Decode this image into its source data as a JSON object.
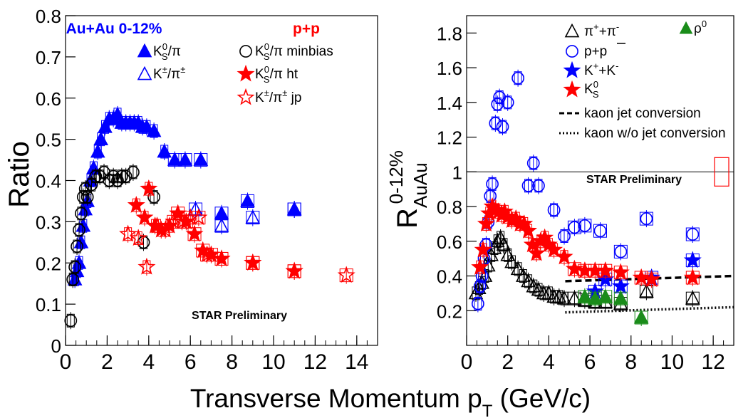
{
  "colors": {
    "blue": "#0000ff",
    "red": "#ff0000",
    "black": "#000000",
    "magenta": "#ff00ff",
    "green": "#1a8c1a"
  },
  "xlabel": "Transverse Momentum p",
  "xlabel_sub": "T",
  "xlabel_unit": " (GeV/c)",
  "chart_data": [
    {
      "type": "scatter",
      "ylabel": "Ratio",
      "xlim": [
        0,
        15
      ],
      "ylim": [
        0,
        0.8
      ],
      "x_ticks": [
        "0",
        "2",
        "4",
        "6",
        "8",
        "10",
        "12",
        "14"
      ],
      "y_ticks": [
        "0",
        "0.1",
        "0.2",
        "0.3",
        "0.4",
        "0.5",
        "0.6",
        "0.7",
        "0.8"
      ],
      "group_labels": {
        "auau": "Au+Au 0-12%",
        "pp": "p+p"
      },
      "annotation": "STAR Preliminary",
      "legend": {
        "ks_pi": "K",
        "ks_pi_sup": "0",
        "ks_pi_sub": "S",
        "ks_pi_tail": "/π",
        "kpm_pi": "K",
        "kpm_pi_sup": "±",
        "kpm_pi_mid": "/π",
        "kpm_pi_sup2": "±",
        "ks_pi_minbias_tail": "/π minbias",
        "ks_pi_ht_tail": "/π ht",
        "kpm_pi_jp_tail": " jp"
      },
      "series": [
        {
          "name": "AuAu K0S/π",
          "marker": "triangle-filled",
          "color": "blue",
          "points": [
            [
              0.45,
              0.16
            ],
            [
              0.55,
              0.18
            ],
            [
              0.65,
              0.2
            ],
            [
              0.75,
              0.25
            ],
            [
              0.85,
              0.29
            ],
            [
              0.95,
              0.33
            ],
            [
              1.05,
              0.35
            ],
            [
              1.2,
              0.4
            ],
            [
              1.35,
              0.43
            ],
            [
              1.55,
              0.47
            ],
            [
              1.7,
              0.5
            ],
            [
              1.9,
              0.53
            ],
            [
              2.1,
              0.55
            ],
            [
              2.3,
              0.55
            ],
            [
              2.5,
              0.56
            ],
            [
              2.7,
              0.54
            ],
            [
              2.9,
              0.54
            ],
            [
              3.1,
              0.54
            ],
            [
              3.3,
              0.54
            ],
            [
              3.5,
              0.54
            ],
            [
              3.7,
              0.53
            ],
            [
              3.9,
              0.53
            ],
            [
              4.25,
              0.52
            ],
            [
              4.75,
              0.47
            ],
            [
              5.25,
              0.45
            ],
            [
              5.75,
              0.45
            ],
            [
              6.5,
              0.45
            ],
            [
              7.5,
              0.32
            ],
            [
              8.75,
              0.35
            ],
            [
              11.0,
              0.33
            ]
          ]
        },
        {
          "name": "AuAu K±/π±",
          "marker": "triangle-open",
          "color": "blue",
          "points": [
            [
              6.25,
              0.33
            ],
            [
              7.5,
              0.29
            ],
            [
              9.0,
              0.31
            ],
            [
              11.0,
              0.33
            ]
          ]
        },
        {
          "name": "pp K0S/π minbias",
          "marker": "circle-open",
          "color": "black",
          "points": [
            [
              0.25,
              0.06
            ],
            [
              0.35,
              0.16
            ],
            [
              0.45,
              0.19
            ],
            [
              0.55,
              0.24
            ],
            [
              0.65,
              0.28
            ],
            [
              0.75,
              0.32
            ],
            [
              0.85,
              0.36
            ],
            [
              0.95,
              0.38
            ],
            [
              1.05,
              0.36
            ],
            [
              1.25,
              0.39
            ],
            [
              1.45,
              0.41
            ],
            [
              1.65,
              0.41
            ],
            [
              1.85,
              0.42
            ],
            [
              2.1,
              0.4
            ],
            [
              2.3,
              0.41
            ],
            [
              2.5,
              0.4
            ],
            [
              2.7,
              0.41
            ],
            [
              2.9,
              0.41
            ],
            [
              3.25,
              0.42
            ],
            [
              3.75,
              0.25
            ],
            [
              4.25,
              0.36
            ]
          ]
        },
        {
          "name": "pp K0S/π ht",
          "marker": "star-filled",
          "color": "red",
          "points": [
            [
              3.4,
              0.34
            ],
            [
              3.8,
              0.31
            ],
            [
              4.0,
              0.38
            ],
            [
              4.3,
              0.29
            ],
            [
              4.6,
              0.28
            ],
            [
              5.0,
              0.29
            ],
            [
              5.4,
              0.32
            ],
            [
              5.8,
              0.3
            ],
            [
              6.2,
              0.27
            ],
            [
              6.6,
              0.23
            ],
            [
              7.0,
              0.22
            ],
            [
              7.5,
              0.21
            ],
            [
              9.0,
              0.2
            ],
            [
              11.0,
              0.18
            ]
          ]
        },
        {
          "name": "pp K±/π± jp",
          "marker": "star-open",
          "color": "red",
          "points": [
            [
              3.0,
              0.27
            ],
            [
              3.5,
              0.26
            ],
            [
              3.9,
              0.19
            ],
            [
              4.4,
              0.29
            ],
            [
              4.8,
              0.28
            ],
            [
              5.2,
              0.3
            ],
            [
              5.6,
              0.3
            ],
            [
              6.0,
              0.31
            ],
            [
              6.4,
              0.31
            ],
            [
              6.8,
              0.22
            ],
            [
              7.5,
              0.21
            ],
            [
              9.0,
              0.2
            ],
            [
              11.0,
              0.18
            ],
            [
              13.5,
              0.17
            ]
          ]
        }
      ]
    },
    {
      "type": "scatter",
      "ylabel": "R",
      "ylabel_sub": "AuAu",
      "ylabel_sup": "0-12%",
      "xlim": [
        0,
        13
      ],
      "ylim": [
        0,
        1.9
      ],
      "x_ticks": [
        "0",
        "2",
        "4",
        "6",
        "8",
        "10",
        "12"
      ],
      "y_ticks": [
        "0.2",
        "0.4",
        "0.6",
        "0.8",
        "1",
        "1.2",
        "1.4",
        "1.6",
        "1.8"
      ],
      "reference_line": 1,
      "annotation": "STAR Preliminary",
      "legend": {
        "pipi": "π",
        "pipi_sup1": "+",
        "pipi_mid": "+π",
        "pipi_sup2": "-",
        "ppbar": "p+p",
        "kk": "K",
        "kk_sup1": "+",
        "kk_mid": "+K",
        "kk_sup2": "-",
        "ks": "K",
        "ks_sup": "0",
        "ks_sub": "S",
        "rho": "ρ",
        "rho_sup": "0",
        "jet": "kaon jet conversion",
        "nojet": "kaon w/o jet conversion"
      },
      "series": [
        {
          "name": "π++π-",
          "marker": "triangle-open",
          "color": "black",
          "points": [
            [
              0.45,
              0.3
            ],
            [
              0.6,
              0.33
            ],
            [
              0.75,
              0.36
            ],
            [
              0.9,
              0.4
            ],
            [
              1.05,
              0.46
            ],
            [
              1.2,
              0.52
            ],
            [
              1.35,
              0.56
            ],
            [
              1.5,
              0.6
            ],
            [
              1.65,
              0.62
            ],
            [
              1.8,
              0.58
            ],
            [
              2.0,
              0.52
            ],
            [
              2.2,
              0.48
            ],
            [
              2.5,
              0.44
            ],
            [
              2.75,
              0.4
            ],
            [
              3.0,
              0.37
            ],
            [
              3.25,
              0.34
            ],
            [
              3.5,
              0.32
            ],
            [
              3.75,
              0.3
            ],
            [
              4.0,
              0.3
            ],
            [
              4.25,
              0.28
            ],
            [
              4.5,
              0.28
            ],
            [
              4.75,
              0.27
            ],
            [
              5.25,
              0.27
            ],
            [
              5.75,
              0.26
            ],
            [
              6.25,
              0.25
            ],
            [
              6.75,
              0.25
            ],
            [
              7.5,
              0.24
            ],
            [
              8.75,
              0.31
            ],
            [
              11.0,
              0.27
            ]
          ]
        },
        {
          "name": "p+p̄",
          "marker": "circle-open",
          "color": "blue",
          "points": [
            [
              0.55,
              0.24
            ],
            [
              0.65,
              0.34
            ],
            [
              0.75,
              0.4
            ],
            [
              0.85,
              0.5
            ],
            [
              0.95,
              0.58
            ],
            [
              1.05,
              0.71
            ],
            [
              1.15,
              0.86
            ],
            [
              1.25,
              0.93
            ],
            [
              1.4,
              1.28
            ],
            [
              1.5,
              1.39
            ],
            [
              1.6,
              1.43
            ],
            [
              1.75,
              1.26
            ],
            [
              2.0,
              1.4
            ],
            [
              2.5,
              1.54
            ],
            [
              3.0,
              0.92
            ],
            [
              3.25,
              1.05
            ],
            [
              3.5,
              0.92
            ],
            [
              4.25,
              0.78
            ],
            [
              4.75,
              0.63
            ],
            [
              5.25,
              0.68
            ],
            [
              5.75,
              0.69
            ],
            [
              6.5,
              0.66
            ],
            [
              7.5,
              0.54
            ],
            [
              8.75,
              0.73
            ],
            [
              11.0,
              0.64
            ]
          ]
        },
        {
          "name": "K++K-",
          "marker": "star-filled",
          "color": "blue",
          "points": [
            [
              6.25,
              0.31
            ],
            [
              6.75,
              0.38
            ],
            [
              7.5,
              0.34
            ],
            [
              9.0,
              0.39
            ],
            [
              11.0,
              0.49
            ]
          ]
        },
        {
          "name": "K0S",
          "marker": "star-filled",
          "color": "red",
          "points": [
            [
              0.65,
              0.45
            ],
            [
              0.8,
              0.55
            ],
            [
              0.95,
              0.7
            ],
            [
              1.1,
              0.76
            ],
            [
              1.25,
              0.8
            ],
            [
              1.4,
              0.78
            ],
            [
              1.55,
              0.77
            ],
            [
              1.7,
              0.75
            ],
            [
              1.85,
              0.77
            ],
            [
              2.0,
              0.74
            ],
            [
              2.2,
              0.72
            ],
            [
              2.4,
              0.73
            ],
            [
              2.6,
              0.7
            ],
            [
              2.8,
              0.7
            ],
            [
              3.0,
              0.66
            ],
            [
              3.2,
              0.58
            ],
            [
              3.4,
              0.53
            ],
            [
              3.6,
              0.6
            ],
            [
              3.8,
              0.62
            ],
            [
              4.0,
              0.58
            ],
            [
              4.25,
              0.55
            ],
            [
              4.75,
              0.51
            ],
            [
              5.25,
              0.44
            ],
            [
              5.75,
              0.43
            ],
            [
              6.25,
              0.43
            ],
            [
              6.75,
              0.43
            ],
            [
              7.5,
              0.42
            ],
            [
              8.5,
              0.39
            ],
            [
              9.0,
              0.38
            ],
            [
              11.0,
              0.39
            ]
          ]
        },
        {
          "name": "ρ0",
          "marker": "triangle-filled",
          "color": "green",
          "points": [
            [
              5.75,
              0.28
            ],
            [
              6.25,
              0.27
            ],
            [
              6.75,
              0.28
            ],
            [
              7.5,
              0.27
            ],
            [
              8.5,
              0.16
            ]
          ]
        }
      ],
      "curves": [
        {
          "name": "kaon jet conversion",
          "style": "dashed",
          "points": [
            [
              4.8,
              0.37
            ],
            [
              13.0,
              0.4
            ]
          ]
        },
        {
          "name": "kaon w/o jet conversion",
          "style": "dotted",
          "points": [
            [
              4.8,
              0.19
            ],
            [
              13.0,
              0.22
            ]
          ]
        }
      ]
    }
  ]
}
